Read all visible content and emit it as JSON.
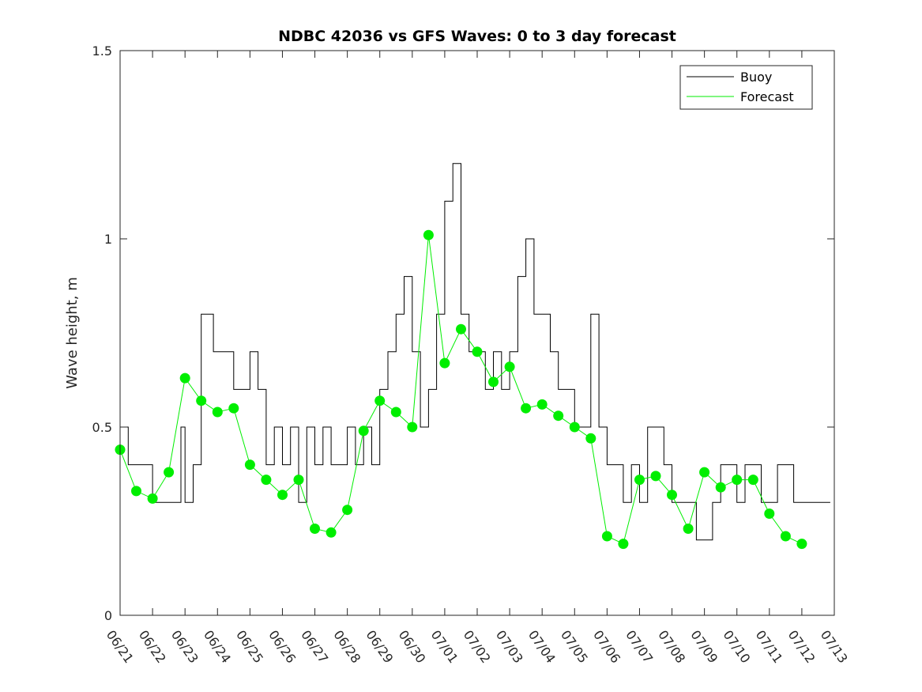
{
  "chart_data": {
    "type": "line",
    "title": "NDBC 42036 vs GFS Waves: 0 to 3 day forecast",
    "xlabel": "",
    "ylabel": "Wave height, m",
    "xlim": [
      "06/21",
      "07/13"
    ],
    "ylim": [
      0,
      1.5
    ],
    "grid": false,
    "legend_position": "top-right",
    "x_tick_labels": [
      "06/21",
      "06/22",
      "06/23",
      "06/24",
      "06/25",
      "06/26",
      "06/27",
      "06/28",
      "06/29",
      "06/30",
      "07/01",
      "07/02",
      "07/03",
      "07/04",
      "07/05",
      "07/06",
      "07/07",
      "07/08",
      "07/09",
      "07/10",
      "07/11",
      "07/12",
      "07/13"
    ],
    "y_ticks": [
      0,
      0.5,
      1,
      1.5
    ],
    "y_tick_labels": [
      "0",
      "0.5",
      "1",
      "1.5"
    ],
    "colors": {
      "buoy": "#000000",
      "forecast": "#00ee00",
      "markers": "#00ee00"
    },
    "legend": [
      {
        "label": "Buoy",
        "color": "#000000"
      },
      {
        "label": "Forecast",
        "color": "#00ee00"
      }
    ],
    "series": [
      {
        "name": "Buoy",
        "color": "#000000",
        "x": [
          "06/21 00:00",
          "06/21 06:00",
          "06/21 12:00",
          "06/22 00:00",
          "06/22 12:00",
          "06/22 21:00",
          "06/23 00:00",
          "06/23 06:00",
          "06/23 12:00",
          "06/23 21:00",
          "06/24 06:00",
          "06/24 12:00",
          "06/24 21:00",
          "06/25 00:00",
          "06/25 06:00",
          "06/25 12:00",
          "06/25 18:00",
          "06/26 00:00",
          "06/26 06:00",
          "06/26 12:00",
          "06/26 18:00",
          "06/27 00:00",
          "06/27 06:00",
          "06/27 12:00",
          "06/27 18:00",
          "06/28 00:00",
          "06/28 06:00",
          "06/28 12:00",
          "06/28 18:00",
          "06/29 00:00",
          "06/29 06:00",
          "06/29 12:00",
          "06/29 18:00",
          "06/30 00:00",
          "06/30 06:00",
          "06/30 12:00",
          "06/30 18:00",
          "07/01 00:00",
          "07/01 06:00",
          "07/01 12:00",
          "07/01 18:00",
          "07/02 00:00",
          "07/02 06:00",
          "07/02 12:00",
          "07/02 18:00",
          "07/03 00:00",
          "07/03 06:00",
          "07/03 12:00",
          "07/03 18:00",
          "07/04 00:00",
          "07/04 06:00",
          "07/04 12:00",
          "07/04 18:00",
          "07/05 00:00",
          "07/05 06:00",
          "07/05 12:00",
          "07/05 18:00",
          "07/06 00:00",
          "07/06 06:00",
          "07/06 12:00",
          "07/06 18:00",
          "07/07 00:00",
          "07/07 06:00",
          "07/07 12:00",
          "07/07 18:00",
          "07/08 00:00",
          "07/08 06:00",
          "07/08 12:00",
          "07/08 18:00",
          "07/09 00:00",
          "07/09 06:00",
          "07/09 12:00",
          "07/09 18:00",
          "07/10 00:00",
          "07/10 06:00",
          "07/10 12:00",
          "07/10 18:00",
          "07/11 00:00",
          "07/11 06:00",
          "07/11 12:00",
          "07/11 18:00",
          "07/12 00:00",
          "07/12 06:00",
          "07/12 12:00",
          "07/12 18:00"
        ],
        "values": [
          0.5,
          0.4,
          0.4,
          0.3,
          0.3,
          0.5,
          0.3,
          0.4,
          0.8,
          0.7,
          0.7,
          0.6,
          0.6,
          0.7,
          0.6,
          0.4,
          0.5,
          0.4,
          0.5,
          0.3,
          0.5,
          0.4,
          0.5,
          0.4,
          0.4,
          0.5,
          0.4,
          0.5,
          0.4,
          0.6,
          0.7,
          0.8,
          0.9,
          0.7,
          0.5,
          0.6,
          0.8,
          1.1,
          1.2,
          0.8,
          0.7,
          0.7,
          0.6,
          0.7,
          0.6,
          0.7,
          0.9,
          1.0,
          0.8,
          0.8,
          0.7,
          0.6,
          0.6,
          0.5,
          0.5,
          0.8,
          0.5,
          0.4,
          0.4,
          0.3,
          0.4,
          0.3,
          0.5,
          0.5,
          0.4,
          0.3,
          0.3,
          0.3,
          0.2,
          0.2,
          0.3,
          0.4,
          0.4,
          0.3,
          0.4,
          0.4,
          0.3,
          0.3,
          0.4,
          0.4,
          0.3,
          0.3,
          0.3,
          0.3,
          0.3
        ]
      },
      {
        "name": "Forecast",
        "color": "#00ee00",
        "x": [
          "06/21 00:00",
          "06/21 12:00",
          "06/22 00:00",
          "06/22 12:00",
          "06/23 00:00",
          "06/23 12:00",
          "06/24 00:00",
          "06/24 12:00",
          "06/25 00:00",
          "06/25 12:00",
          "06/26 00:00",
          "06/26 12:00",
          "06/27 00:00",
          "06/27 12:00",
          "06/28 00:00",
          "06/28 12:00",
          "06/29 00:00",
          "06/29 12:00",
          "06/30 00:00",
          "06/30 12:00",
          "07/01 00:00",
          "07/01 12:00",
          "07/02 00:00",
          "07/02 12:00",
          "07/03 00:00",
          "07/03 12:00",
          "07/04 00:00",
          "07/04 12:00",
          "07/05 00:00",
          "07/05 12:00",
          "07/06 00:00",
          "07/06 12:00",
          "07/07 00:00",
          "07/07 12:00",
          "07/08 00:00",
          "07/08 12:00",
          "07/09 00:00",
          "07/09 12:00",
          "07/10 00:00",
          "07/10 12:00",
          "07/11 00:00",
          "07/11 12:00",
          "07/12 00:00"
        ],
        "values": [
          0.44,
          0.33,
          0.31,
          0.38,
          0.63,
          0.57,
          0.54,
          0.55,
          0.4,
          0.36,
          0.32,
          0.36,
          0.23,
          0.22,
          0.28,
          0.49,
          0.57,
          0.54,
          0.5,
          1.01,
          0.67,
          0.76,
          0.7,
          0.62,
          0.66,
          0.55,
          0.56,
          0.53,
          0.5,
          0.47,
          0.21,
          0.19,
          0.36,
          0.37,
          0.32,
          0.23,
          0.38,
          0.34,
          0.36,
          0.36,
          0.27,
          0.21,
          0.19
        ]
      }
    ]
  }
}
